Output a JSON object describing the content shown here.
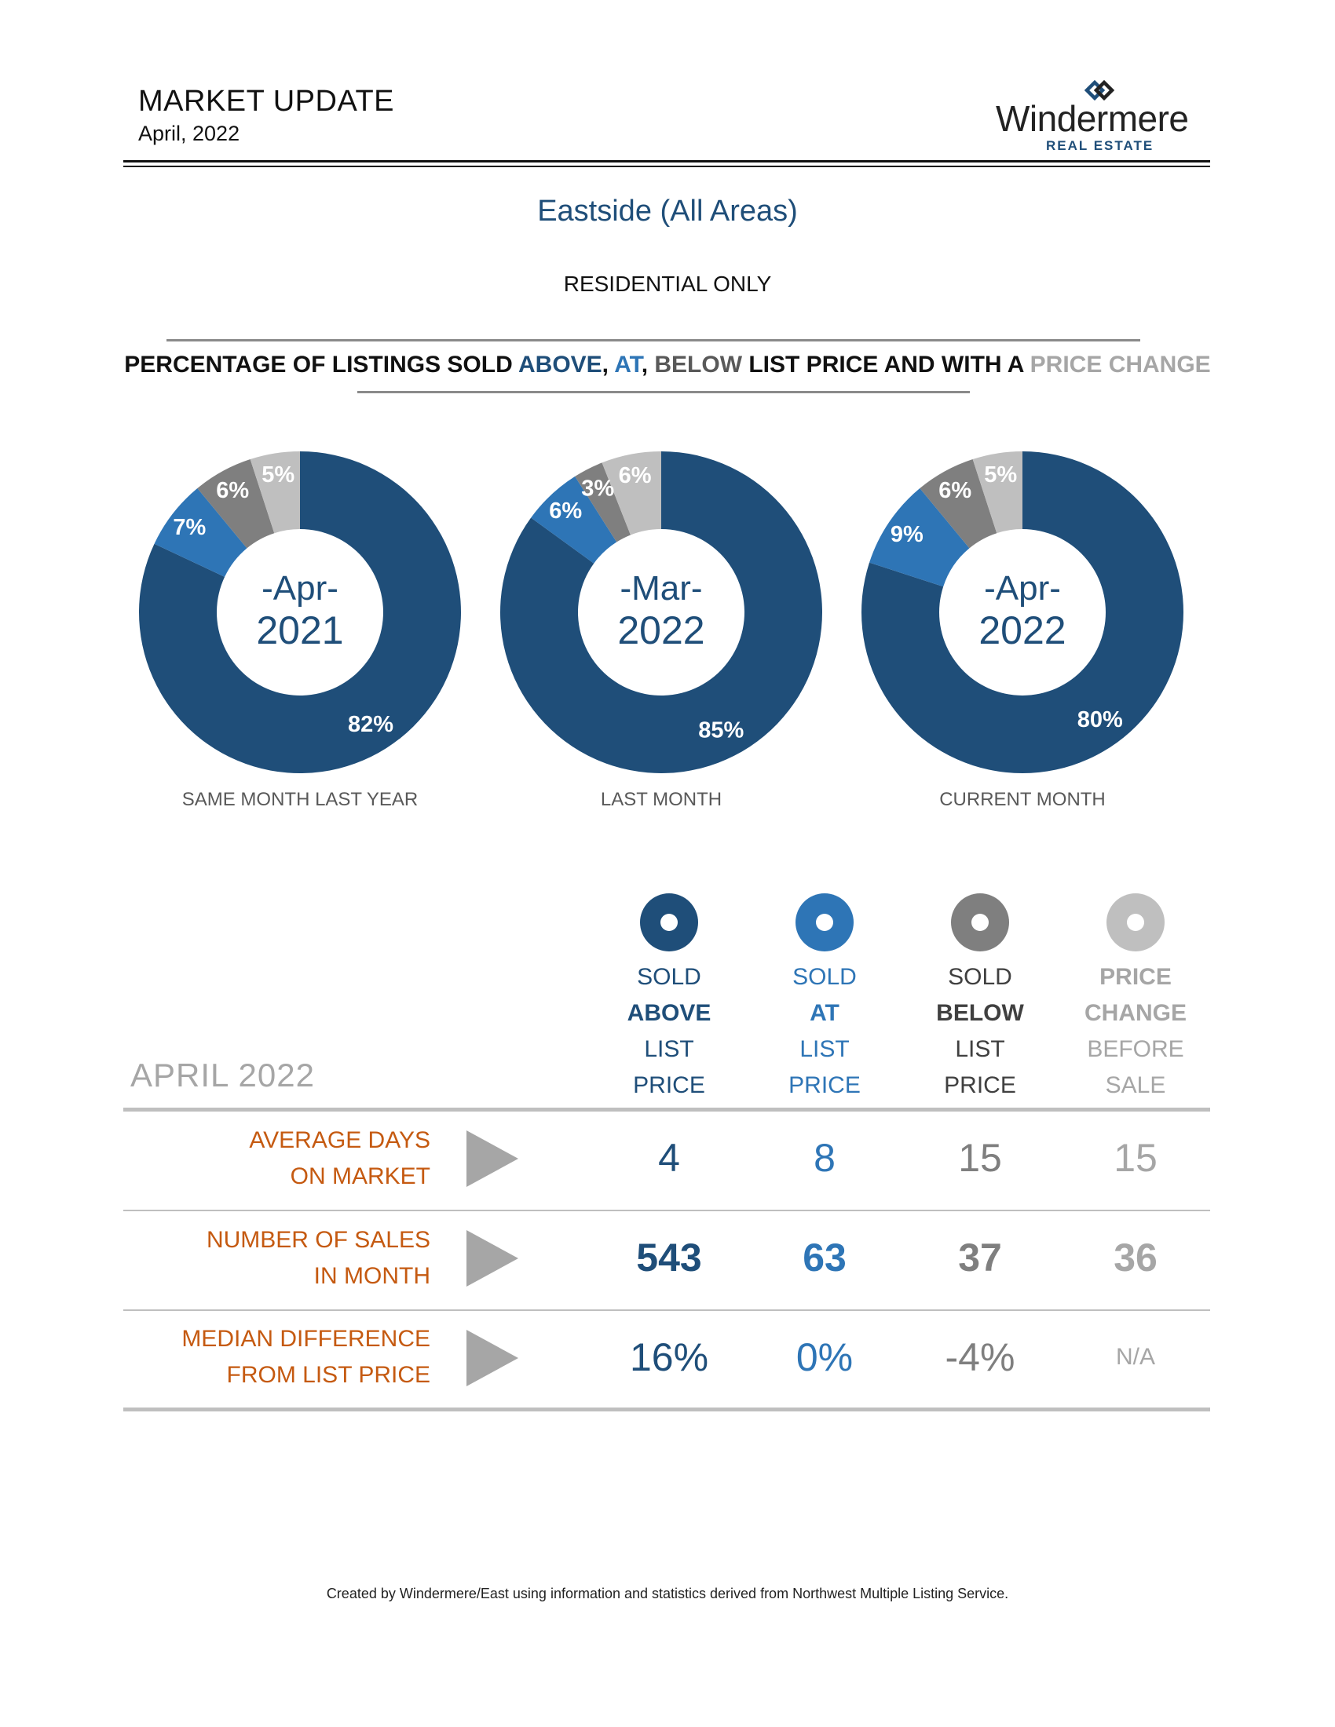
{
  "header": {
    "title": "MARKET UPDATE",
    "date": "April, 2022",
    "logo_name": "Windermere",
    "logo_sub": "REAL ESTATE"
  },
  "region": "Eastside (All Areas)",
  "subtitle": "RESIDENTIAL ONLY",
  "headline": {
    "part1": "PERCENTAGE OF LISTINGS SOLD ",
    "above": "ABOVE",
    "comma1": ", ",
    "at": "AT",
    "comma2": ", ",
    "below": "BELOW",
    "part2": " LIST PRICE AND WITH A ",
    "change": "PRICE CHANGE"
  },
  "colors": {
    "above": "#1f4e79",
    "at": "#2e75b6",
    "below": "#7f7f7f",
    "change": "#bfbfbf",
    "row_label": "#c55a11"
  },
  "chart_data": [
    {
      "type": "pie",
      "center_month": "-Apr-",
      "center_year": "2021",
      "caption": "SAME MONTH LAST YEAR",
      "categories": [
        "Sold Above",
        "Sold At",
        "Sold Below",
        "Price Change"
      ],
      "values": [
        82,
        7,
        6,
        5
      ],
      "labels": [
        "82%",
        "7%",
        "6%",
        "5%"
      ]
    },
    {
      "type": "pie",
      "center_month": "-Mar-",
      "center_year": "2022",
      "caption": "LAST MONTH",
      "categories": [
        "Sold Above",
        "Sold At",
        "Sold Below",
        "Price Change"
      ],
      "values": [
        85,
        6,
        3,
        6
      ],
      "labels": [
        "85%",
        "6%",
        "3%",
        "6%"
      ]
    },
    {
      "type": "pie",
      "center_month": "-Apr-",
      "center_year": "2022",
      "caption": "CURRENT MONTH",
      "categories": [
        "Sold Above",
        "Sold At",
        "Sold Below",
        "Price Change"
      ],
      "values": [
        80,
        9,
        6,
        5
      ],
      "labels": [
        "80%",
        "9%",
        "6%",
        "5%"
      ]
    }
  ],
  "table": {
    "period": "APRIL 2022",
    "columns": [
      {
        "l1": "SOLD",
        "l2": "ABOVE",
        "l3": "LIST",
        "l4": "PRICE"
      },
      {
        "l1": "SOLD",
        "l2": "AT",
        "l3": "LIST",
        "l4": "PRICE"
      },
      {
        "l1": "SOLD",
        "l2": "BELOW",
        "l3": "LIST",
        "l4": "PRICE"
      },
      {
        "l1": "PRICE",
        "l2": "CHANGE",
        "l3": "BEFORE",
        "l4": "SALE"
      }
    ],
    "rows": [
      {
        "l1": "AVERAGE DAYS",
        "l2": "ON MARKET",
        "values": [
          "4",
          "8",
          "15",
          "15"
        ]
      },
      {
        "l1": "NUMBER OF SALES",
        "l2": "IN MONTH",
        "values": [
          "543",
          "63",
          "37",
          "36"
        ]
      },
      {
        "l1": "MEDIAN DIFFERENCE",
        "l2": "FROM LIST PRICE",
        "values": [
          "16%",
          "0%",
          "-4%",
          "N/A"
        ]
      }
    ]
  },
  "footer": "Created by Windermere/East using information and statistics derived from Northwest Multiple Listing Service."
}
